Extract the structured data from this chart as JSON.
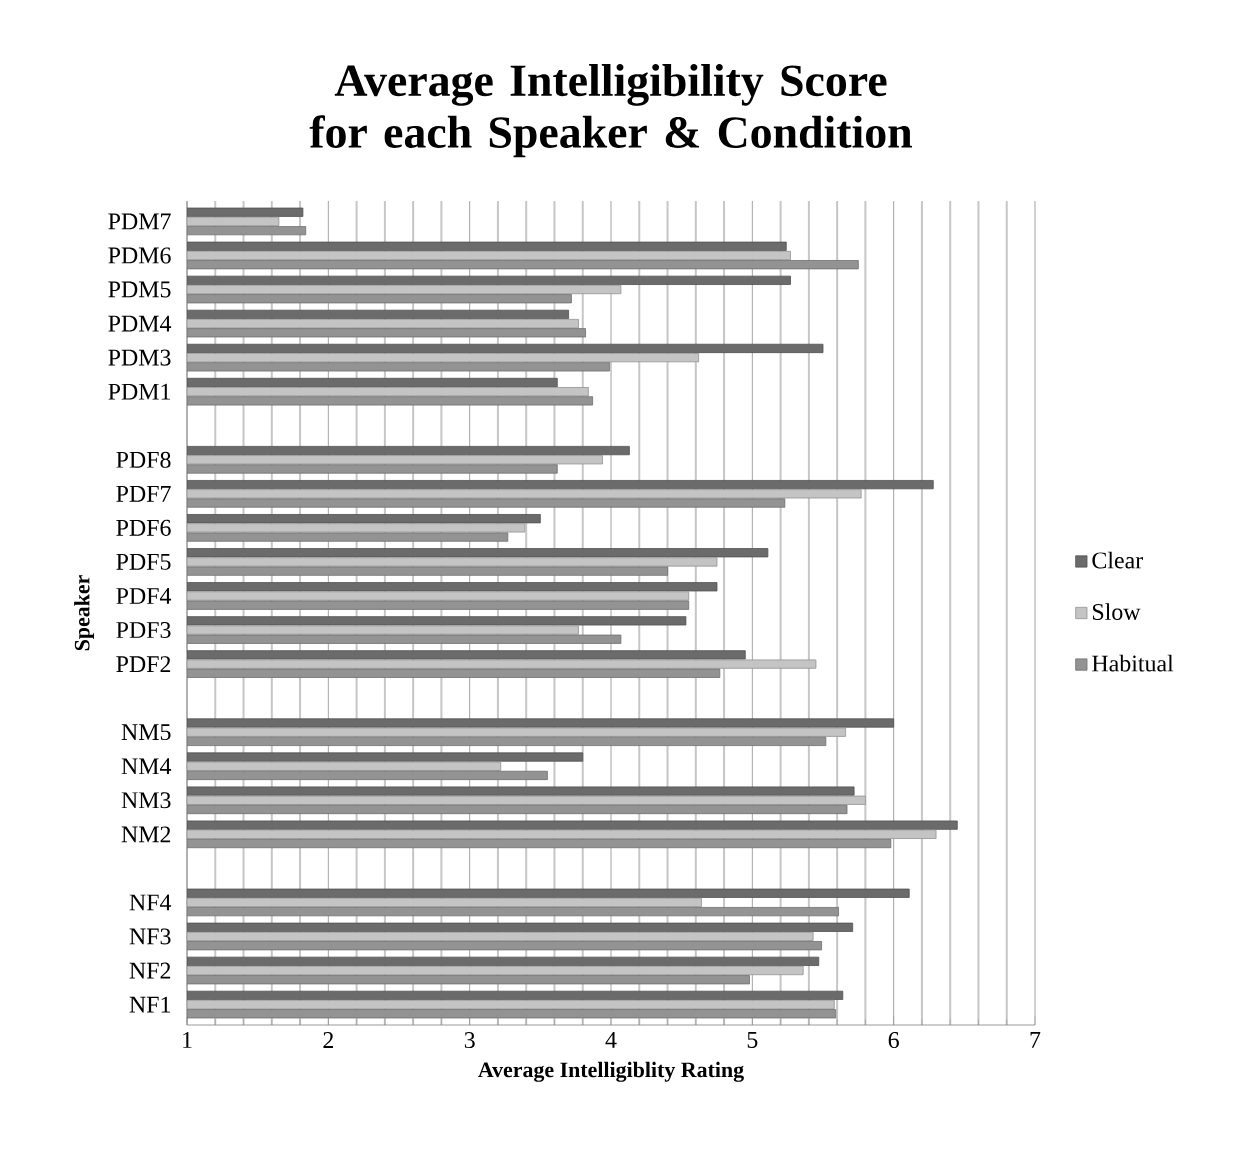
{
  "chart_data": {
    "type": "bar",
    "orientation": "horizontal",
    "title": "Average Intelligibility Score for each Speaker & Condition",
    "xlabel": "Average Intelligiblity Rating",
    "ylabel": "Speaker",
    "categories": [
      "PDM7",
      "PDM6",
      "PDM5",
      "PDM4",
      "PDM3",
      "PDM1",
      null,
      "PDF8",
      "PDF7",
      "PDF6",
      "PDF5",
      "PDF4",
      "PDF3",
      "PDF2",
      null,
      "NM5",
      "NM4",
      "NM3",
      "NM2",
      null,
      "NF4",
      "NF3",
      "NF2",
      "NF1"
    ],
    "series": [
      {
        "name": "Clear",
        "color": "#6b6b6b",
        "values": [
          1.82,
          5.24,
          5.27,
          3.7,
          5.5,
          3.62,
          null,
          4.13,
          6.28,
          3.5,
          5.11,
          4.75,
          4.53,
          4.95,
          null,
          6.0,
          3.8,
          5.72,
          6.45,
          null,
          6.11,
          5.71,
          5.47,
          5.64
        ]
      },
      {
        "name": "Slow",
        "color": "#c4c4c4",
        "values": [
          1.65,
          5.27,
          4.07,
          3.77,
          4.62,
          3.84,
          null,
          3.94,
          5.77,
          3.39,
          4.75,
          4.55,
          3.77,
          5.45,
          null,
          5.66,
          3.22,
          5.8,
          6.3,
          null,
          4.64,
          5.43,
          5.36,
          5.58
        ]
      },
      {
        "name": "Habitual",
        "color": "#939393",
        "values": [
          1.84,
          5.75,
          3.72,
          3.82,
          3.99,
          3.87,
          null,
          3.62,
          5.23,
          3.27,
          4.4,
          4.55,
          4.07,
          4.77,
          null,
          5.52,
          3.55,
          5.67,
          5.98,
          null,
          5.61,
          5.49,
          4.98,
          5.59
        ]
      }
    ],
    "xlim": [
      1,
      7
    ],
    "xticks": [
      1,
      2,
      3,
      4,
      5,
      6,
      7
    ],
    "grid": "x",
    "legend": "right"
  }
}
